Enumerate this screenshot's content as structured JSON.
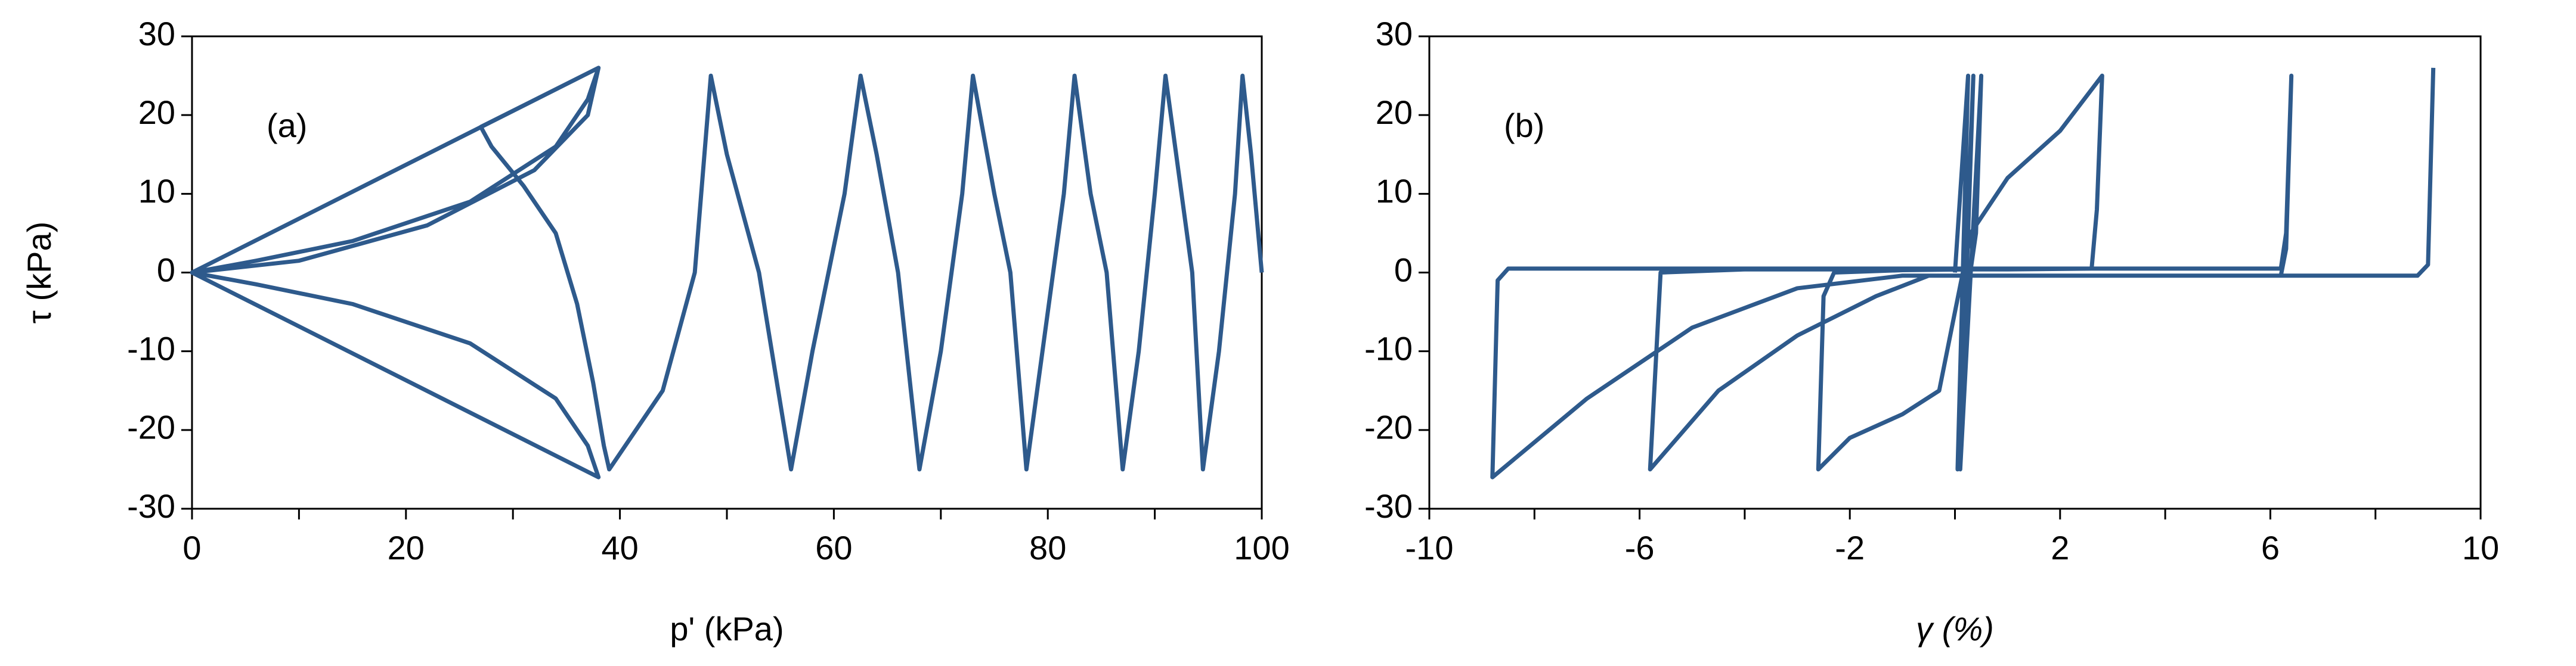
{
  "chart_data": [
    {
      "type": "line",
      "annotation": "(a)",
      "x_label": "p' (kPa)",
      "y_label": "τ (kPa)",
      "color": "#2e5a8c",
      "xlim": [
        0,
        100
      ],
      "xticks": [
        0,
        20,
        40,
        60,
        80,
        100
      ],
      "xminorticks": [
        10,
        30,
        50,
        70,
        90
      ],
      "ylim": [
        -30,
        30
      ],
      "yticks": [
        -30,
        -20,
        -10,
        0,
        10,
        20,
        30
      ],
      "x": [
        0,
        38,
        37,
        34,
        26,
        15,
        6,
        0,
        6,
        15,
        26,
        34,
        37,
        38,
        0,
        10,
        22,
        32,
        37,
        38,
        27,
        28,
        31,
        34,
        36,
        37.5,
        38.5,
        39,
        44,
        47,
        48.5,
        50,
        53,
        56,
        58,
        61,
        62.5,
        64,
        66,
        68,
        70,
        72,
        73,
        75,
        76.5,
        78,
        79.5,
        81.5,
        82.5,
        84,
        85.5,
        87,
        88.5,
        90,
        91,
        92.5,
        93.5,
        94.5,
        96,
        97.5,
        98.2,
        99,
        100
      ],
      "values": [
        0,
        26,
        22,
        16,
        9,
        4,
        1.5,
        0,
        -1.5,
        -4,
        -9,
        -16,
        -22,
        -26,
        0,
        1.5,
        6,
        13,
        20,
        26,
        18.5,
        16,
        11,
        5,
        -4,
        -14,
        -22,
        -25,
        -15,
        0,
        25,
        15,
        0,
        -25,
        -10,
        10,
        25,
        15,
        0,
        -25,
        -10,
        10,
        25,
        10,
        0,
        -25,
        -10,
        10,
        25,
        10,
        0,
        -25,
        -10,
        10,
        25,
        10,
        0,
        -25,
        -10,
        10,
        25,
        15,
        0
      ]
    },
    {
      "type": "line",
      "annotation": "(b)",
      "x_label": "γ (%)",
      "color": "#2e5a8c",
      "xlim": [
        -10,
        10
      ],
      "xticks": [
        -10,
        -6,
        -2,
        2,
        6,
        10
      ],
      "xminorticks": [
        -8,
        -4,
        0,
        4,
        8
      ],
      "ylim": [
        -30,
        30
      ],
      "yticks": [
        -30,
        -20,
        -10,
        0,
        10,
        20,
        30
      ],
      "x": [
        0,
        0.25,
        0.05,
        0.35,
        0.1,
        0.5,
        0.4,
        0.3,
        -1,
        -2.3,
        -2.5,
        -2.6,
        -2,
        -1,
        -0.3,
        0,
        0.3,
        1,
        2,
        2.8,
        2.7,
        2.6,
        1,
        -4,
        -5.6,
        -5.8,
        -4.5,
        -3,
        -1.5,
        -0.5,
        6.2,
        6.3,
        6.4,
        6.3,
        6.2,
        -8.5,
        -8.7,
        -8.8,
        -7,
        -5,
        -3,
        -1,
        8.8,
        9,
        9.1
      ],
      "values": [
        0,
        25,
        -25,
        25,
        -25,
        25,
        5,
        0.4,
        0.3,
        0,
        -3,
        -25,
        -21,
        -18,
        -15,
        -5,
        5,
        12,
        18,
        25,
        8,
        0.5,
        0.4,
        0.4,
        0,
        -25,
        -15,
        -8,
        -3,
        -0.4,
        -0.4,
        3,
        25,
        5,
        0.5,
        0.5,
        -1,
        -26,
        -16,
        -7,
        -2,
        -0.4,
        -0.4,
        1,
        26
      ]
    }
  ]
}
